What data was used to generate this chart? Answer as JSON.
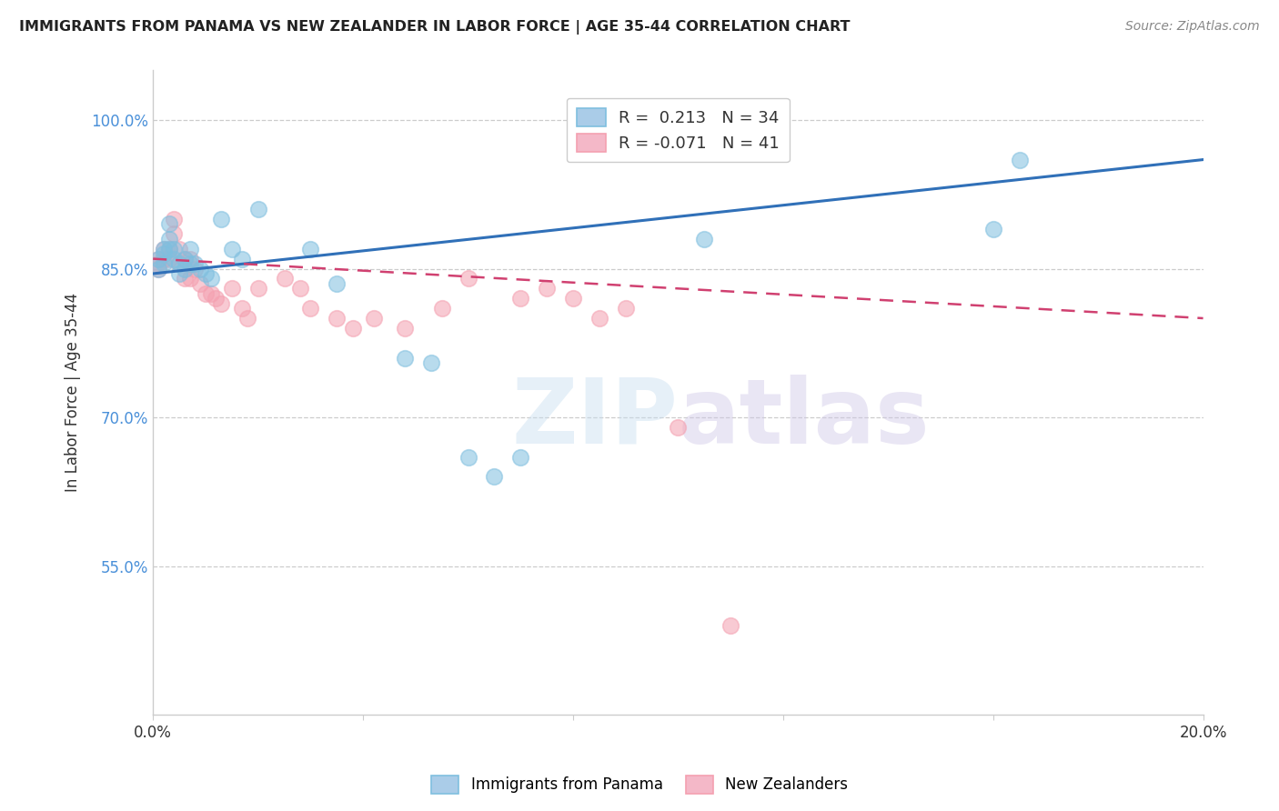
{
  "title": "IMMIGRANTS FROM PANAMA VS NEW ZEALANDER IN LABOR FORCE | AGE 35-44 CORRELATION CHART",
  "source": "Source: ZipAtlas.com",
  "ylabel_label": "In Labor Force | Age 35-44",
  "xlim": [
    0.0,
    0.2
  ],
  "ylim": [
    0.4,
    1.05
  ],
  "xtick_positions": [
    0.0,
    0.04,
    0.08,
    0.12,
    0.16,
    0.2
  ],
  "xtick_labels": [
    "0.0%",
    "",
    "",
    "",
    "",
    "20.0%"
  ],
  "ytick_positions": [
    0.55,
    0.7,
    0.85,
    1.0
  ],
  "ytick_labels": [
    "55.0%",
    "70.0%",
    "85.0%",
    "100.0%"
  ],
  "blue_color": "#7fbfdf",
  "pink_color": "#f4a0b0",
  "blue_line_color": "#3070b8",
  "pink_line_color": "#d04070",
  "watermark_text": "ZIPatlas",
  "blue_scatter_x": [
    0.001,
    0.001,
    0.002,
    0.002,
    0.002,
    0.003,
    0.003,
    0.003,
    0.004,
    0.004,
    0.005,
    0.005,
    0.006,
    0.006,
    0.007,
    0.007,
    0.008,
    0.009,
    0.01,
    0.011,
    0.013,
    0.015,
    0.017,
    0.02,
    0.03,
    0.035,
    0.048,
    0.053,
    0.06,
    0.065,
    0.07,
    0.105,
    0.16,
    0.165
  ],
  "blue_scatter_y": [
    0.86,
    0.85,
    0.87,
    0.865,
    0.855,
    0.895,
    0.88,
    0.87,
    0.87,
    0.86,
    0.855,
    0.845,
    0.86,
    0.85,
    0.87,
    0.855,
    0.855,
    0.85,
    0.845,
    0.84,
    0.9,
    0.87,
    0.86,
    0.91,
    0.87,
    0.835,
    0.76,
    0.755,
    0.66,
    0.64,
    0.66,
    0.88,
    0.89,
    0.96
  ],
  "pink_scatter_x": [
    0.001,
    0.001,
    0.001,
    0.002,
    0.002,
    0.003,
    0.003,
    0.004,
    0.004,
    0.005,
    0.005,
    0.006,
    0.006,
    0.007,
    0.007,
    0.008,
    0.009,
    0.01,
    0.011,
    0.012,
    0.013,
    0.015,
    0.017,
    0.018,
    0.02,
    0.025,
    0.028,
    0.03,
    0.035,
    0.038,
    0.042,
    0.048,
    0.055,
    0.06,
    0.07,
    0.075,
    0.08,
    0.085,
    0.09,
    0.1,
    0.11
  ],
  "pink_scatter_y": [
    0.86,
    0.855,
    0.85,
    0.87,
    0.86,
    0.87,
    0.86,
    0.9,
    0.885,
    0.87,
    0.855,
    0.86,
    0.84,
    0.86,
    0.84,
    0.85,
    0.835,
    0.825,
    0.825,
    0.82,
    0.815,
    0.83,
    0.81,
    0.8,
    0.83,
    0.84,
    0.83,
    0.81,
    0.8,
    0.79,
    0.8,
    0.79,
    0.81,
    0.84,
    0.82,
    0.83,
    0.82,
    0.8,
    0.81,
    0.69,
    0.49
  ],
  "blue_line_x0": 0.0,
  "blue_line_x1": 0.2,
  "blue_line_y0": 0.845,
  "blue_line_y1": 0.96,
  "pink_line_x0": 0.0,
  "pink_line_x1": 0.2,
  "pink_line_y0": 0.86,
  "pink_line_y1": 0.8
}
